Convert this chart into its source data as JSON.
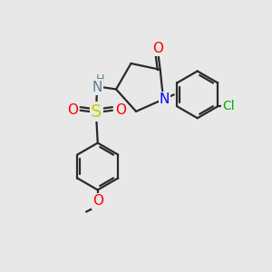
{
  "bg_color": "#e8e8e8",
  "bond_color": "#2a2a2a",
  "bond_width": 1.6,
  "colors": {
    "O": "#ff0000",
    "N_blue": "#0000ff",
    "N_gray": "#5f8090",
    "S": "#cccc00",
    "Cl": "#00aa00",
    "C": "#2a2a2a",
    "H": "#5f8090"
  },
  "font_size": 11,
  "font_size_small": 9,
  "font_size_cl": 10
}
